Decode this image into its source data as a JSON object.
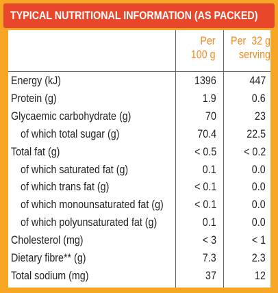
{
  "header": {
    "title": "TYPICAL NUTRITIONAL INFORMATION (AS PACKED)"
  },
  "table": {
    "columns": [
      "",
      "Per\n100 g",
      "Per  32 g\nserving"
    ],
    "rows": [
      [
        "Energy (kJ)",
        "1396",
        "447"
      ],
      [
        "Protein (g)",
        "1.9",
        "0.6"
      ],
      [
        "Glycaemic carbohydrate (g)",
        "70",
        "23"
      ],
      [
        "of which total sugar (g)",
        "70.4",
        "22.5"
      ],
      [
        "Total fat (g)",
        "< 0.5",
        "< 0.2"
      ],
      [
        "of which saturated fat (g)",
        "0.1",
        "0.0"
      ],
      [
        "of which trans fat (g)",
        "< 0.1",
        "0.0"
      ],
      [
        "of which monounsaturated fat (g)",
        "< 0.1",
        "0.0"
      ],
      [
        "of which polyunsaturated fat (g)",
        "0.1",
        "0.0"
      ],
      [
        "Cholesterol (mg)",
        "< 3",
        "< 1"
      ],
      [
        "Dietary fibre** (g)",
        "7.3",
        "2.3"
      ],
      [
        "Total sodium (mg)",
        "37",
        "12"
      ]
    ]
  }
}
